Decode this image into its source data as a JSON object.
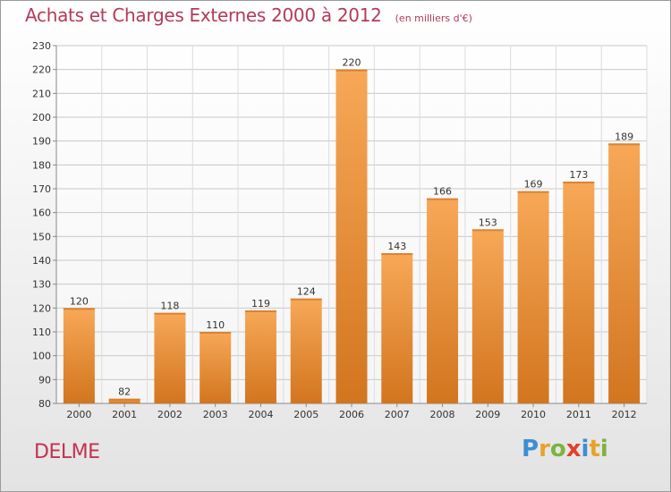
{
  "header": {
    "title": "Achats et Charges Externes 2000 à 2012",
    "subtitle": "(en milliers d'€)"
  },
  "footer": {
    "place_name": "DELME",
    "logo_letters": [
      "P",
      "r",
      "o",
      "x",
      "i",
      "t",
      "i"
    ],
    "logo_colors": [
      "#3b8fd6",
      "#e8a22b",
      "#7cb342",
      "#e2402f",
      "#3b8fd6",
      "#e8a22b",
      "#7cb342"
    ]
  },
  "chart_data": {
    "type": "bar",
    "title": "Achats et Charges Externes 2000 à 2012",
    "subtitle": "(en milliers d'€)",
    "categories": [
      "2000",
      "2001",
      "2002",
      "2003",
      "2004",
      "2005",
      "2006",
      "2007",
      "2008",
      "2009",
      "2010",
      "2011",
      "2012"
    ],
    "values": [
      120,
      82,
      118,
      110,
      119,
      124,
      220,
      143,
      166,
      153,
      169,
      173,
      189
    ],
    "ylim": [
      80,
      230
    ],
    "yticks": [
      80,
      90,
      100,
      110,
      120,
      130,
      140,
      150,
      160,
      170,
      180,
      190,
      200,
      210,
      220,
      230
    ],
    "grid": true,
    "bar_color": "#f0983f",
    "bar_color_dark": "#d2751f"
  }
}
